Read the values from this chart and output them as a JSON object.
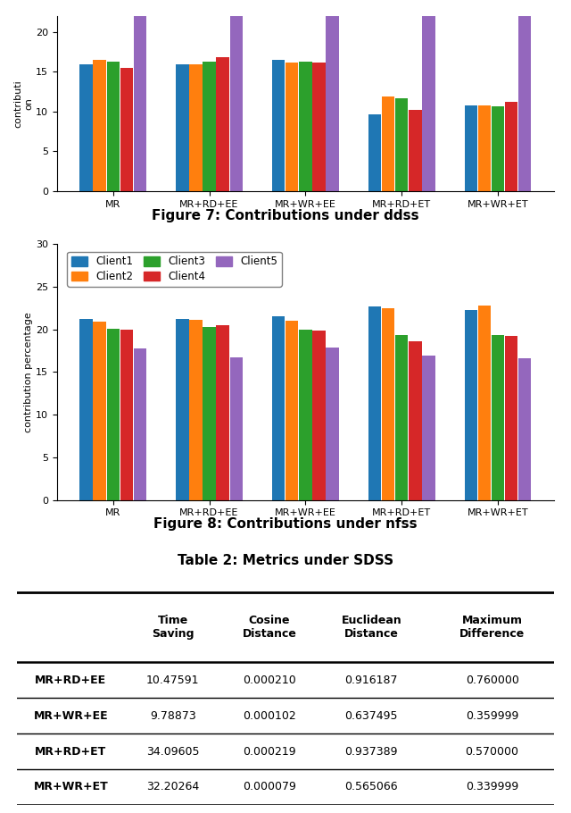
{
  "fig7_title": "Figure 7: Contributions under ddss",
  "fig8_title": "Figure 8: Contributions under nfss",
  "table_title": "Table 2: Metrics under SDSS",
  "categories": [
    "MR",
    "MR+RD+EE",
    "MR+WR+EE",
    "MR+RD+ET",
    "MR+WR+ET"
  ],
  "clients": [
    "Client1",
    "Client2",
    "Client3",
    "Client4",
    "Client5"
  ],
  "colors": [
    "#1f77b4",
    "#ff7f0e",
    "#2ca02c",
    "#d62728",
    "#9467bd"
  ],
  "fig7_ylabel": "contributi\non",
  "fig8_ylabel": "contribution percentage",
  "fig7_data": {
    "MR": [
      16.0,
      16.5,
      16.3,
      15.5,
      26.0
    ],
    "MR+RD+EE": [
      16.0,
      16.0,
      16.3,
      16.8,
      26.0
    ],
    "MR+WR+EE": [
      16.5,
      16.2,
      16.3,
      16.2,
      26.0
    ],
    "MR+RD+ET": [
      9.7,
      11.9,
      11.7,
      10.2,
      26.0
    ],
    "MR+WR+ET": [
      10.8,
      10.8,
      10.7,
      11.2,
      26.0
    ]
  },
  "fig7_ylim": [
    0,
    22
  ],
  "fig7_yticks": [
    0,
    5,
    10,
    15,
    20
  ],
  "fig8_data": {
    "MR": [
      21.2,
      20.9,
      20.1,
      20.0,
      17.8
    ],
    "MR+RD+EE": [
      21.2,
      21.1,
      20.3,
      20.5,
      16.7
    ],
    "MR+WR+EE": [
      21.5,
      21.0,
      20.0,
      19.8,
      17.9
    ],
    "MR+RD+ET": [
      22.7,
      22.5,
      19.3,
      18.6,
      16.9
    ],
    "MR+WR+ET": [
      22.3,
      22.8,
      19.3,
      19.2,
      16.6
    ]
  },
  "fig8_ylim": [
    0,
    30
  ],
  "fig8_yticks": [
    0,
    5,
    10,
    15,
    20,
    25,
    30
  ],
  "table_rows": [
    "MR+RD+EE",
    "MR+WR+EE",
    "MR+RD+ET",
    "MR+WR+ET"
  ],
  "table_col_headers": [
    "Time\nSaving",
    "Cosine\nDistance",
    "Euclidean\nDistance",
    "Maximum\nDifference"
  ],
  "table_data": [
    [
      "10.47591",
      "0.000210",
      "0.916187",
      "0.760000"
    ],
    [
      "9.78873",
      "0.000102",
      "0.637495",
      "0.359999"
    ],
    [
      "34.09605",
      "0.000219",
      "0.937389",
      "0.570000"
    ],
    [
      "32.20264",
      "0.000079",
      "0.565066",
      "0.339999"
    ]
  ],
  "bg_color": "#ffffff"
}
